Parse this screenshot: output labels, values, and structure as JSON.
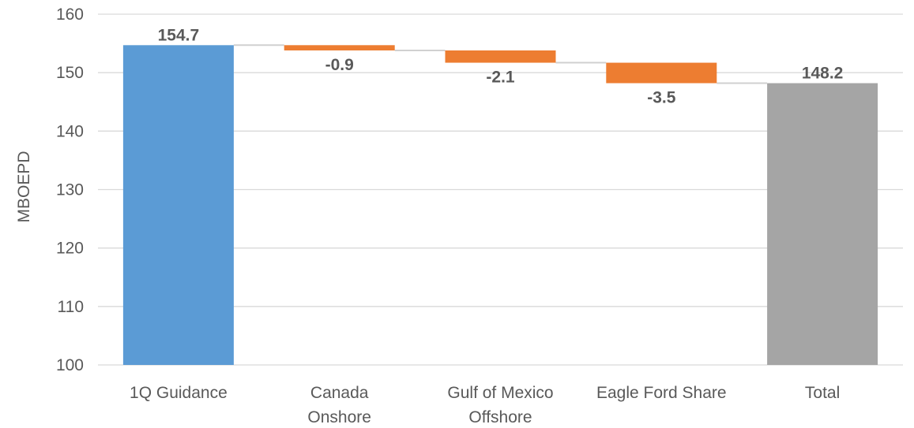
{
  "chart_data": {
    "type": "bar",
    "subtype": "waterfall",
    "title": "",
    "xlabel": "",
    "ylabel": "MBOEPD",
    "ylim": [
      100,
      160
    ],
    "yticks": [
      100,
      110,
      120,
      130,
      140,
      150,
      160
    ],
    "grid": true,
    "legend": "none",
    "categories": [
      [
        "1Q Guidance"
      ],
      [
        "Canada",
        "Onshore"
      ],
      [
        "Gulf of Mexico",
        "Offshore"
      ],
      [
        "Eagle Ford Share"
      ],
      [
        "Total"
      ]
    ],
    "values": [
      154.7,
      -0.9,
      -2.1,
      -3.5,
      148.2
    ],
    "data_labels": [
      "154.7",
      "-0.9",
      "-2.1",
      "-3.5",
      "148.2"
    ],
    "bar_kinds": [
      "total",
      "decrease",
      "decrease",
      "decrease",
      "total"
    ],
    "colors": {
      "start_total": "#5b9bd5",
      "decrease": "#ed7d31",
      "end_total": "#a5a5a5",
      "gridline": "#d9d9d9",
      "text": "#595959"
    }
  }
}
